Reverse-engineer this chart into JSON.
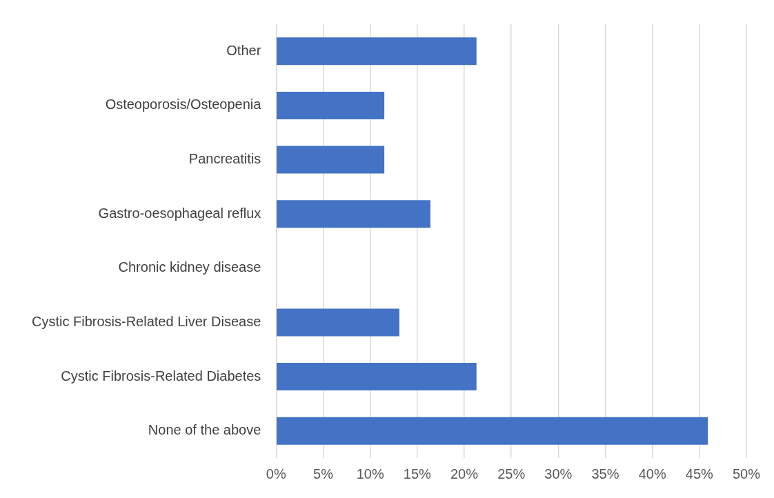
{
  "chart_data": {
    "type": "bar",
    "orientation": "horizontal",
    "categories": [
      "Other",
      "Osteoporosis/Osteopenia",
      "Pancreatitis",
      "Gastro-oesophageal reflux",
      "Chronic kidney disease",
      "Cystic Fibrosis-Related Liver Disease",
      "Cystic Fibrosis-Related Diabetes",
      "None of the above"
    ],
    "values": [
      21.3,
      11.5,
      11.5,
      16.4,
      0,
      13.1,
      21.3,
      45.9
    ],
    "color": "#4472c4",
    "xlim": [
      0,
      50
    ],
    "xticks": [
      {
        "value": 0,
        "label": "0%"
      },
      {
        "value": 5,
        "label": "5%"
      },
      {
        "value": 10,
        "label": "10%"
      },
      {
        "value": 15,
        "label": "15%"
      },
      {
        "value": 20,
        "label": "20%"
      },
      {
        "value": 25,
        "label": "25%"
      },
      {
        "value": 30,
        "label": "30%"
      },
      {
        "value": 35,
        "label": "35%"
      },
      {
        "value": 40,
        "label": "40%"
      },
      {
        "value": 45,
        "label": "45%"
      },
      {
        "value": 50,
        "label": "50%"
      }
    ],
    "grid": "x"
  }
}
